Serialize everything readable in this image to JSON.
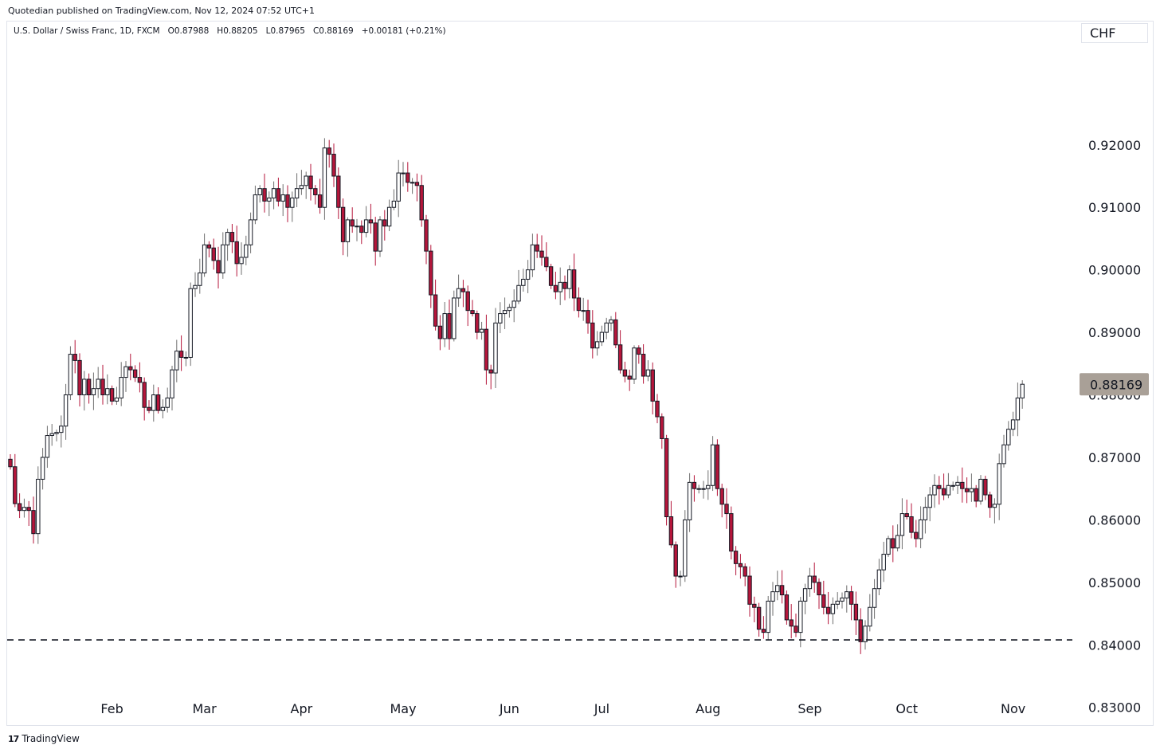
{
  "header": {
    "published": "Quotedian published on TradingView.com, Nov 12, 2024 07:52 UTC+1"
  },
  "legend": {
    "symbol": "U.S. Dollar / Swiss Franc, 1D, FXCM",
    "open": "O0.87988",
    "high": "H0.88205",
    "low": "L0.87965",
    "close": "C0.88169",
    "change": "+0.00181 (+0.21%)"
  },
  "currency_button": "CHF",
  "footer": {
    "logo_glyph": "17",
    "brand": "TradingView"
  },
  "colors": {
    "up_body": "#ffffff",
    "up_border": "#131722",
    "down_body": "#b5163b",
    "down_border": "#131722",
    "price_tag": "#a9a097",
    "support_line": "#131722"
  },
  "chart_data": {
    "type": "candlestick",
    "title": "U.S. Dollar / Swiss Franc, 1D, FXCM",
    "yticks": [
      0.92,
      0.91,
      0.9,
      0.89,
      0.88,
      0.87,
      0.86,
      0.85,
      0.84,
      0.83
    ],
    "ytick_labels": [
      "0.92000",
      "0.91000",
      "0.90000",
      "0.89000",
      "0.88000",
      "0.87000",
      "0.86000",
      "0.85000",
      "0.84000",
      "0.83000"
    ],
    "ylim": [
      0.8278,
      0.9368
    ],
    "months": [
      {
        "label": "Feb",
        "index": 22
      },
      {
        "label": "Mar",
        "index": 42
      },
      {
        "label": "Apr",
        "index": 63
      },
      {
        "label": "May",
        "index": 85
      },
      {
        "label": "Jun",
        "index": 108
      },
      {
        "label": "Jul",
        "index": 128
      },
      {
        "label": "Aug",
        "index": 151
      },
      {
        "label": "Sep",
        "index": 173
      },
      {
        "label": "Oct",
        "index": 194
      },
      {
        "label": "Nov",
        "index": 217
      }
    ],
    "last_price": {
      "value": 0.88169,
      "label": "0.88169"
    },
    "support_level": 0.8408,
    "closes": [
      0.8685,
      0.8626,
      0.8615,
      0.862,
      0.8615,
      0.8578,
      0.8665,
      0.87,
      0.8735,
      0.8738,
      0.874,
      0.875,
      0.88,
      0.8865,
      0.8855,
      0.88,
      0.8825,
      0.88,
      0.881,
      0.8825,
      0.88,
      0.881,
      0.879,
      0.8795,
      0.8828,
      0.8845,
      0.884,
      0.8828,
      0.882,
      0.878,
      0.8775,
      0.88,
      0.8775,
      0.878,
      0.8795,
      0.884,
      0.887,
      0.886,
      0.886,
      0.897,
      0.8975,
      0.8995,
      0.904,
      0.9035,
      0.9015,
      0.8995,
      0.904,
      0.906,
      0.9045,
      0.901,
      0.902,
      0.904,
      0.908,
      0.912,
      0.913,
      0.911,
      0.9115,
      0.913,
      0.911,
      0.912,
      0.91,
      0.9115,
      0.913,
      0.9135,
      0.915,
      0.913,
      0.912,
      0.91,
      0.9195,
      0.9185,
      0.915,
      0.91,
      0.9045,
      0.908,
      0.907,
      0.907,
      0.906,
      0.908,
      0.9075,
      0.903,
      0.908,
      0.907,
      0.91,
      0.911,
      0.9155,
      0.9155,
      0.914,
      0.914,
      0.9135,
      0.908,
      0.903,
      0.896,
      0.891,
      0.889,
      0.893,
      0.889,
      0.8955,
      0.897,
      0.8965,
      0.8935,
      0.893,
      0.89,
      0.8905,
      0.884,
      0.8835,
      0.8915,
      0.893,
      0.8935,
      0.894,
      0.895,
      0.8975,
      0.8985,
      0.9,
      0.904,
      0.903,
      0.902,
      0.9005,
      0.8975,
      0.8965,
      0.898,
      0.897,
      0.9,
      0.8955,
      0.8935,
      0.8935,
      0.8915,
      0.8875,
      0.8885,
      0.89,
      0.8915,
      0.892,
      0.888,
      0.884,
      0.883,
      0.8825,
      0.8875,
      0.8865,
      0.883,
      0.884,
      0.879,
      0.8765,
      0.873,
      0.8605,
      0.856,
      0.851,
      0.851,
      0.86,
      0.866,
      0.865,
      0.865,
      0.865,
      0.8655,
      0.872,
      0.865,
      0.8625,
      0.861,
      0.855,
      0.853,
      0.8525,
      0.851,
      0.8465,
      0.846,
      0.8425,
      0.842,
      0.847,
      0.8485,
      0.8495,
      0.848,
      0.844,
      0.843,
      0.842,
      0.847,
      0.849,
      0.851,
      0.85,
      0.848,
      0.846,
      0.845,
      0.8465,
      0.847,
      0.8475,
      0.8485,
      0.8465,
      0.844,
      0.8405,
      0.843,
      0.846,
      0.849,
      0.852,
      0.8545,
      0.857,
      0.8555,
      0.8575,
      0.861,
      0.8605,
      0.858,
      0.857,
      0.86,
      0.862,
      0.864,
      0.8655,
      0.865,
      0.864,
      0.8655,
      0.8655,
      0.866,
      0.865,
      0.8645,
      0.865,
      0.863,
      0.8665,
      0.864,
      0.862,
      0.8625,
      0.869,
      0.872,
      0.8745,
      0.876,
      0.8795,
      0.8817
    ]
  }
}
